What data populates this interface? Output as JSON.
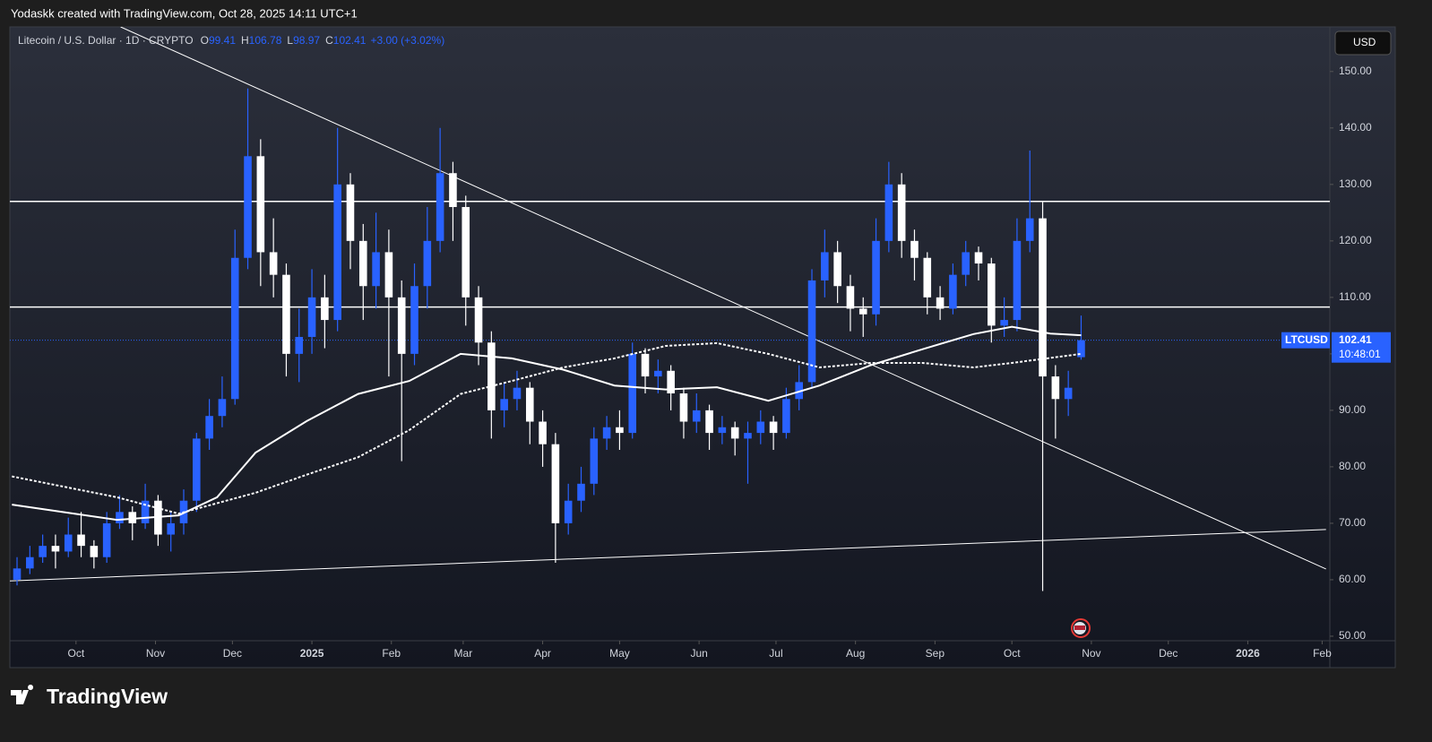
{
  "header": {
    "text": "Yodaskk created with TradingView.com, Oct 28, 2025 14:11 UTC+1"
  },
  "chart_data": {
    "type": "candlestick",
    "instrument": "Litecoin / U.S. Dollar · 1D · CRYPTO",
    "ohlc_labels": [
      "O",
      "H",
      "L",
      "C"
    ],
    "change": "+3.00 (+3.02%)",
    "symbol": "LTCUSD",
    "countdown": "10:48:01",
    "currency": "USD",
    "up_color": "#2962ff",
    "down_color": "#ffffff",
    "x": [
      -23,
      -18,
      -13,
      -8,
      -3,
      2,
      7,
      12,
      17,
      22,
      27,
      32,
      37,
      42,
      47,
      52,
      57,
      62,
      67,
      72,
      77,
      82,
      87,
      92,
      97,
      102,
      107,
      112,
      117,
      122,
      127,
      132,
      137,
      142,
      147,
      152,
      157,
      162,
      167,
      172,
      177,
      182,
      187,
      192,
      197,
      202,
      207,
      212,
      217,
      222,
      227,
      232,
      237,
      242,
      247,
      252,
      257,
      262,
      267,
      272,
      277,
      282,
      287,
      292,
      297,
      302,
      307,
      312,
      317,
      322,
      327,
      332,
      337,
      342,
      347,
      352,
      357,
      362,
      367,
      372,
      377,
      382,
      387,
      392
    ],
    "open": [
      60,
      62,
      64,
      66,
      65,
      68,
      66,
      64,
      70,
      72,
      70,
      74,
      68,
      70,
      74,
      85,
      89,
      92,
      117,
      135,
      118,
      114,
      100,
      103,
      110,
      106,
      130,
      120,
      112,
      118,
      110,
      100,
      112,
      120,
      132,
      126,
      110,
      102,
      90,
      92,
      94,
      88,
      84,
      70,
      74,
      77,
      85,
      87,
      86,
      100,
      96,
      97,
      93,
      88,
      90,
      86,
      87,
      85,
      86,
      88,
      86,
      92,
      95,
      113,
      118,
      112,
      108,
      107,
      120,
      130,
      120,
      117,
      110,
      108,
      114,
      118,
      116,
      105,
      106,
      120,
      124,
      96,
      92,
      99.41
    ],
    "high": [
      64,
      66,
      68,
      68,
      71,
      72,
      67,
      72,
      75,
      73,
      77,
      75,
      72,
      76,
      86,
      92,
      96,
      122,
      147,
      138,
      124,
      116,
      108,
      115,
      114,
      140,
      132,
      123,
      125,
      122,
      113,
      116,
      126,
      140,
      134,
      128,
      112,
      104,
      95,
      97,
      95,
      90,
      86,
      77,
      80,
      87,
      89,
      90,
      102,
      101,
      99,
      98,
      94,
      93,
      91,
      89,
      88,
      88,
      90,
      89,
      94,
      98,
      115,
      122,
      120,
      114,
      110,
      124,
      134,
      132,
      122,
      118,
      112,
      116,
      120,
      119,
      117,
      110,
      124,
      136,
      127,
      98,
      97,
      106.78
    ],
    "low": [
      59,
      61,
      63,
      62,
      64,
      64,
      62,
      63,
      69,
      67,
      69,
      66,
      65,
      68,
      72,
      83,
      87,
      91,
      115,
      112,
      110,
      96,
      95,
      100,
      101,
      104,
      115,
      106,
      108,
      96,
      81,
      98,
      108,
      118,
      120,
      105,
      98,
      85,
      87,
      90,
      84,
      80,
      63,
      68,
      72,
      75,
      83,
      83,
      85,
      93,
      93,
      90,
      85,
      86,
      83,
      84,
      82,
      77,
      84,
      83,
      85,
      90,
      94,
      110,
      109,
      104,
      103,
      105,
      118,
      117,
      113,
      107,
      106,
      107,
      112,
      113,
      102,
      103,
      104,
      118,
      58,
      85,
      89,
      98.97
    ],
    "close": [
      62,
      64,
      66,
      65,
      68,
      66,
      64,
      70,
      72,
      70,
      74,
      68,
      70,
      74,
      85,
      89,
      92,
      117,
      135,
      118,
      114,
      100,
      103,
      110,
      106,
      130,
      120,
      112,
      118,
      110,
      100,
      112,
      120,
      132,
      126,
      110,
      102,
      90,
      92,
      94,
      88,
      84,
      70,
      74,
      77,
      85,
      87,
      86,
      100,
      96,
      97,
      93,
      88,
      90,
      86,
      87,
      85,
      86,
      88,
      86,
      92,
      95,
      113,
      118,
      112,
      108,
      107,
      120,
      130,
      120,
      117,
      110,
      108,
      114,
      118,
      116,
      105,
      106,
      120,
      124,
      96,
      92,
      94,
      102.41
    ],
    "overlays": [
      {
        "style": "solid",
        "color": "#ffffff",
        "x": [
          -25,
          16,
          40,
          55,
          70,
          90,
          110,
          130,
          150,
          170,
          190,
          210,
          230,
          250,
          270,
          290,
          310,
          330,
          350,
          365,
          380,
          392
        ],
        "values": [
          73.3,
          70.6,
          71.4,
          74.6,
          82.5,
          88.1,
          92.9,
          95.2,
          100,
          99.2,
          97.2,
          94.4,
          93.7,
          94.1,
          91.7,
          94.4,
          98,
          100.8,
          103.5,
          104.8,
          103.6,
          103.3
        ]
      },
      {
        "style": "dashed",
        "color": "#ffffff",
        "x": [
          -25,
          16,
          40,
          70,
          90,
          110,
          130,
          150,
          170,
          190,
          210,
          230,
          250,
          270,
          290,
          310,
          330,
          350,
          365,
          392
        ],
        "values": [
          78.3,
          74.6,
          71.7,
          75.4,
          78.6,
          81.7,
          86.5,
          92.9,
          95.2,
          97.6,
          99.2,
          101.4,
          101.9,
          100,
          97.6,
          98.4,
          98.4,
          97.6,
          98.4,
          100
        ]
      }
    ],
    "hlines": [
      127,
      108.3
    ],
    "trendlines": [
      {
        "x": [
          17.4,
          487.5
        ],
        "y": [
          157.9,
          61.9
        ]
      },
      {
        "x": [
          -25.8,
          487.5
        ],
        "y": [
          59.8,
          68.9
        ]
      }
    ],
    "xlim": [
      -25.8,
      489
    ],
    "ylim": [
      49.2,
      157.9
    ],
    "xticks": [
      {
        "value": 0,
        "label": "Oct"
      },
      {
        "value": 31,
        "label": "Nov"
      },
      {
        "value": 61,
        "label": "Dec"
      },
      {
        "value": 92,
        "label": "2025"
      },
      {
        "value": 123,
        "label": "Feb"
      },
      {
        "value": 151,
        "label": "Mar"
      },
      {
        "value": 182,
        "label": "Apr"
      },
      {
        "value": 212,
        "label": "May"
      },
      {
        "value": 243,
        "label": "Jun"
      },
      {
        "value": 273,
        "label": "Jul"
      },
      {
        "value": 304,
        "label": "Aug"
      },
      {
        "value": 335,
        "label": "Sep"
      },
      {
        "value": 365,
        "label": "Oct"
      },
      {
        "value": 396,
        "label": "Nov"
      },
      {
        "value": 426,
        "label": "Dec"
      },
      {
        "value": 457,
        "label": "2026"
      },
      {
        "value": 486,
        "label": "Feb"
      }
    ],
    "yticks": [
      {
        "value": 50,
        "label": "50.00"
      },
      {
        "value": 60,
        "label": "60.00"
      },
      {
        "value": 70,
        "label": "70.00"
      },
      {
        "value": 80,
        "label": "80.00"
      },
      {
        "value": 90,
        "label": "90.00"
      },
      {
        "value": 100,
        "label": "100.00"
      },
      {
        "value": 110,
        "label": "110.00"
      },
      {
        "value": 120,
        "label": "120.00"
      },
      {
        "value": 130,
        "label": "130.00"
      },
      {
        "value": 140,
        "label": "140.00"
      },
      {
        "value": 150,
        "label": "150.00"
      }
    ]
  },
  "footer": {
    "logo": "TradingView"
  }
}
